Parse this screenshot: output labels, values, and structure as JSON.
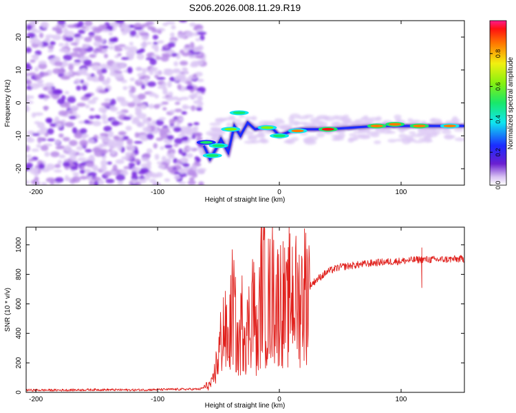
{
  "figure_title": "S206.2026.008.11.29.R19",
  "chart_data": [
    {
      "type": "heatmap",
      "title": "S206.2026.008.11.29.R19",
      "xlabel": "Height of straight line (km)",
      "ylabel": "Frequency (Hz)",
      "xlim": [
        -208,
        152
      ],
      "ylim": [
        -25,
        25
      ],
      "xticks": [
        -200,
        -100,
        0,
        100
      ],
      "yticks": [
        -20,
        -10,
        0,
        10,
        20
      ],
      "colorbar": {
        "label": "Normalized spectral amplitude",
        "range": [
          0,
          1
        ],
        "ticks": [
          0.0,
          0.2,
          0.4,
          0.6,
          0.8
        ]
      },
      "noise_region": {
        "x_start": -208,
        "x_end": -62,
        "freq_range": [
          -25,
          25
        ],
        "amplitude": [
          0.0,
          0.12
        ]
      },
      "carrier_track": [
        {
          "x": -62,
          "freq": -13
        },
        {
          "x": -57,
          "freq": -17
        },
        {
          "x": -52,
          "freq": -14
        },
        {
          "x": -48,
          "freq": -11
        },
        {
          "x": -42,
          "freq": -15
        },
        {
          "x": -37,
          "freq": -7
        },
        {
          "x": -32,
          "freq": -10
        },
        {
          "x": -26,
          "freq": -6
        },
        {
          "x": -20,
          "freq": -8
        },
        {
          "x": -12,
          "freq": -7.5
        },
        {
          "x": -5,
          "freq": -8
        },
        {
          "x": 0,
          "freq": -10
        },
        {
          "x": 10,
          "freq": -8.5
        },
        {
          "x": 20,
          "freq": -8
        },
        {
          "x": 40,
          "freq": -8
        },
        {
          "x": 60,
          "freq": -7.5
        },
        {
          "x": 80,
          "freq": -7
        },
        {
          "x": 100,
          "freq": -7
        },
        {
          "x": 120,
          "freq": -7
        },
        {
          "x": 152,
          "freq": -7
        }
      ],
      "carrier_peaks": [
        {
          "x": -60,
          "freq": -12,
          "amp": 0.45
        },
        {
          "x": -55,
          "freq": -16,
          "amp": 0.5
        },
        {
          "x": -50,
          "freq": -13,
          "amp": 0.5
        },
        {
          "x": -40,
          "freq": -8,
          "amp": 0.55
        },
        {
          "x": -33,
          "freq": -3,
          "amp": 0.5
        },
        {
          "x": -10,
          "freq": -7.5,
          "amp": 0.6
        },
        {
          "x": 0,
          "freq": -10,
          "amp": 0.5
        },
        {
          "x": 15,
          "freq": -8.5,
          "amp": 0.75
        },
        {
          "x": 40,
          "freq": -8,
          "amp": 0.9
        },
        {
          "x": 80,
          "freq": -7,
          "amp": 0.85
        },
        {
          "x": 95,
          "freq": -6.5,
          "amp": 0.8
        },
        {
          "x": 115,
          "freq": -7,
          "amp": 0.8
        },
        {
          "x": 140,
          "freq": -7,
          "amp": 0.75
        }
      ]
    },
    {
      "type": "line",
      "xlabel": "Height of straight line (km)",
      "ylabel": "SNR (10 * v/v)",
      "xlim": [
        -208,
        152
      ],
      "ylim": [
        0,
        1120
      ],
      "xticks": [
        -200,
        -100,
        0,
        100
      ],
      "yticks": [
        0,
        200,
        400,
        600,
        800,
        1000
      ],
      "series": [
        {
          "name": "SNR",
          "color": "#e0201c",
          "x": [
            -208,
            -180,
            -150,
            -120,
            -90,
            -65,
            -55,
            -50,
            -46,
            -42,
            -38,
            -34,
            -30,
            -26,
            -22,
            -18,
            -14,
            -10,
            -6,
            -2,
            2,
            6,
            10,
            15,
            20,
            25,
            30,
            40,
            50,
            60,
            80,
            100,
            115,
            130,
            152
          ],
          "y": [
            15,
            15,
            18,
            16,
            20,
            22,
            60,
            250,
            450,
            320,
            620,
            280,
            520,
            400,
            650,
            300,
            850,
            500,
            720,
            600,
            650,
            520,
            700,
            600,
            680,
            720,
            760,
            820,
            850,
            860,
            880,
            890,
            900,
            900,
            905
          ]
        }
      ],
      "spikes": [
        {
          "x": -12,
          "y": 1110
        },
        {
          "x": -9,
          "y": 1040
        },
        {
          "x": 8,
          "y": 1125
        },
        {
          "x": 4,
          "y": 810
        },
        {
          "x": 100,
          "y": 880
        },
        {
          "x": 117,
          "y": 980
        },
        {
          "x": 117,
          "y": 710
        }
      ]
    }
  ]
}
